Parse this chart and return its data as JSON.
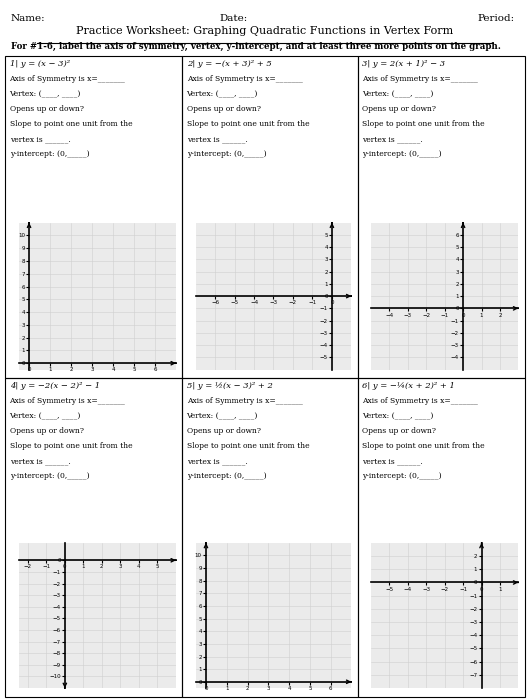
{
  "title": "Practice Worksheet: Graphing Quadratic Functions in Vertex Form",
  "name_label": "Name:",
  "date_label": "Date:",
  "period_label": "Period:",
  "instruction": "For #1-6, label the axis of symmetry, vertex, y-intercept, and at least three more points on the graph.",
  "problems": [
    {
      "number": "1",
      "eq_display": "y = (x − 3)²",
      "xmin": -0.5,
      "xmax": 7,
      "ymin": -0.5,
      "ymax": 11,
      "xticks": [
        0,
        1,
        2,
        3,
        4,
        5,
        6
      ],
      "yticks": [
        0,
        1,
        2,
        3,
        4,
        5,
        6,
        7,
        8,
        9,
        10
      ],
      "x_axis_y": 0,
      "y_axis_x": 0,
      "yarrow_up": true
    },
    {
      "number": "2",
      "eq_display": "y = −(x + 3)² + 5",
      "xmin": -7,
      "xmax": 1,
      "ymin": -6,
      "ymax": 6,
      "xticks": [
        -6,
        -5,
        -4,
        -3,
        -2,
        -1,
        0
      ],
      "yticks": [
        -5,
        -4,
        -3,
        -2,
        -1,
        0,
        1,
        2,
        3,
        4,
        5
      ],
      "x_axis_y": 0,
      "y_axis_x": 0,
      "yarrow_up": true
    },
    {
      "number": "3",
      "eq_display": "y = 2(x + 1)² − 3",
      "xmin": -5,
      "xmax": 3,
      "ymin": -5,
      "ymax": 7,
      "xticks": [
        -4,
        -3,
        -2,
        -1,
        0,
        1,
        2
      ],
      "yticks": [
        -4,
        -3,
        -2,
        -1,
        0,
        1,
        2,
        3,
        4,
        5,
        6
      ],
      "x_axis_y": 0,
      "y_axis_x": 0,
      "yarrow_up": true
    },
    {
      "number": "4",
      "eq_display": "y = −2(x − 2)² − 1",
      "xmin": -2.5,
      "xmax": 6,
      "ymin": -11,
      "ymax": 1.5,
      "xticks": [
        -2,
        -1,
        0,
        1,
        2,
        3,
        4,
        5
      ],
      "yticks": [
        -10,
        -9,
        -8,
        -7,
        -6,
        -5,
        -4,
        -3,
        -2,
        -1,
        0
      ],
      "x_axis_y": 0,
      "y_axis_x": 0,
      "yarrow_up": false
    },
    {
      "number": "5",
      "eq_display": "y = ½(x − 3)² + 2",
      "xmin": -0.5,
      "xmax": 7,
      "ymin": -0.5,
      "ymax": 11,
      "xticks": [
        0,
        1,
        2,
        3,
        4,
        5,
        6
      ],
      "yticks": [
        0,
        1,
        2,
        3,
        4,
        5,
        6,
        7,
        8,
        9,
        10
      ],
      "x_axis_y": 0,
      "y_axis_x": 0,
      "yarrow_up": true
    },
    {
      "number": "6",
      "eq_display": "y = −¼(x + 2)² + 1",
      "xmin": -6,
      "xmax": 2,
      "ymin": -8,
      "ymax": 3,
      "xticks": [
        -5,
        -4,
        -3,
        -2,
        -1,
        0,
        1
      ],
      "yticks": [
        -7,
        -6,
        -5,
        -4,
        -3,
        -2,
        -1,
        0,
        1,
        2
      ],
      "x_axis_y": 0,
      "y_axis_x": 0,
      "yarrow_up": true
    }
  ],
  "text_lines": [
    "Axis of Symmetry is x=_______",
    "Vertex: (____, ____)",
    "Opens up or down?",
    "Slope to point one unit from the",
    "vertex is ______.  ",
    "y-intercept: (0,_____)"
  ],
  "bg_color": "#ffffff",
  "grid_color": "#d0d0d0",
  "axis_color": "#000000",
  "cell_border_color": "#000000"
}
